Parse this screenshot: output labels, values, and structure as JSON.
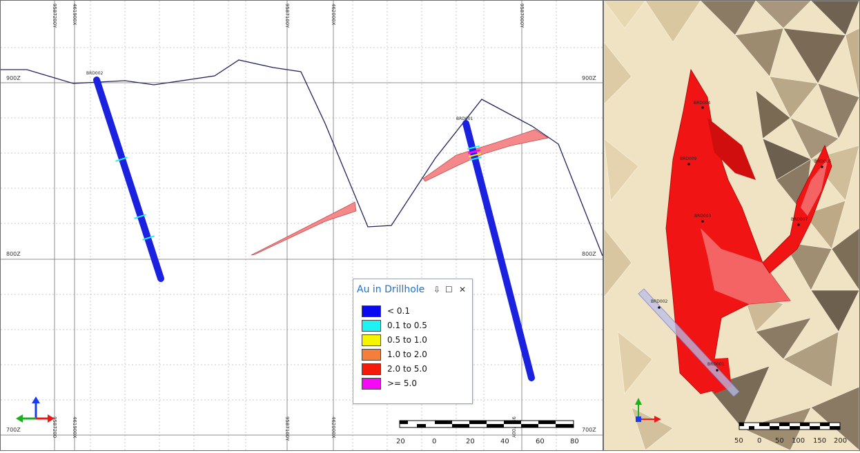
{
  "section": {
    "elev_labels": [
      "900Z",
      "800Z",
      "700Z"
    ],
    "top_coord_labels": [
      "9587200Y",
      "461900X",
      "9587100Y",
      "462000X",
      "9587000Y"
    ],
    "bottom_coord_labels": [
      "9587200",
      "461900X",
      "9587100Y",
      "462000X",
      "958700Y"
    ],
    "hole_labels": [
      "BRD002",
      "BRD001"
    ],
    "scale_labels": [
      "20",
      "0",
      "20",
      "40",
      "60",
      "80"
    ]
  },
  "legend": {
    "title": "Au in Drillhole",
    "pin_icon": "pin-icon",
    "maximize_icon": "maximize-icon",
    "close_icon": "close-icon",
    "pin_glyph": "⇩",
    "maximize_glyph": "☐",
    "close_glyph": "✕",
    "items": [
      {
        "label": "< 0.1",
        "color": "#0a0af0"
      },
      {
        "label": "0.1 to 0.5",
        "color": "#1ff2f2"
      },
      {
        "label": "0.5 to 1.0",
        "color": "#f5f500"
      },
      {
        "label": "1.0 to 2.0",
        "color": "#f57f3a"
      },
      {
        "label": "2.0 to 5.0",
        "color": "#f51a0a"
      },
      {
        "label": ">= 5.0",
        "color": "#f50af5"
      }
    ]
  },
  "plan": {
    "hole_labels": [
      "BRD004",
      "BRD009",
      "BRD005",
      "BRD003",
      "BRD007",
      "BRD002",
      "BRD001"
    ],
    "scale_labels": [
      "50",
      "0",
      "50",
      "100",
      "150",
      "200"
    ]
  },
  "colors": {
    "drillhole": "#1a22e0",
    "orebody": "#f47a7a",
    "topo_line": "#20205a",
    "plan_orebody": "#f01414",
    "terrain_light": "#efe3c4",
    "terrain_dark": "#8c7b64"
  }
}
